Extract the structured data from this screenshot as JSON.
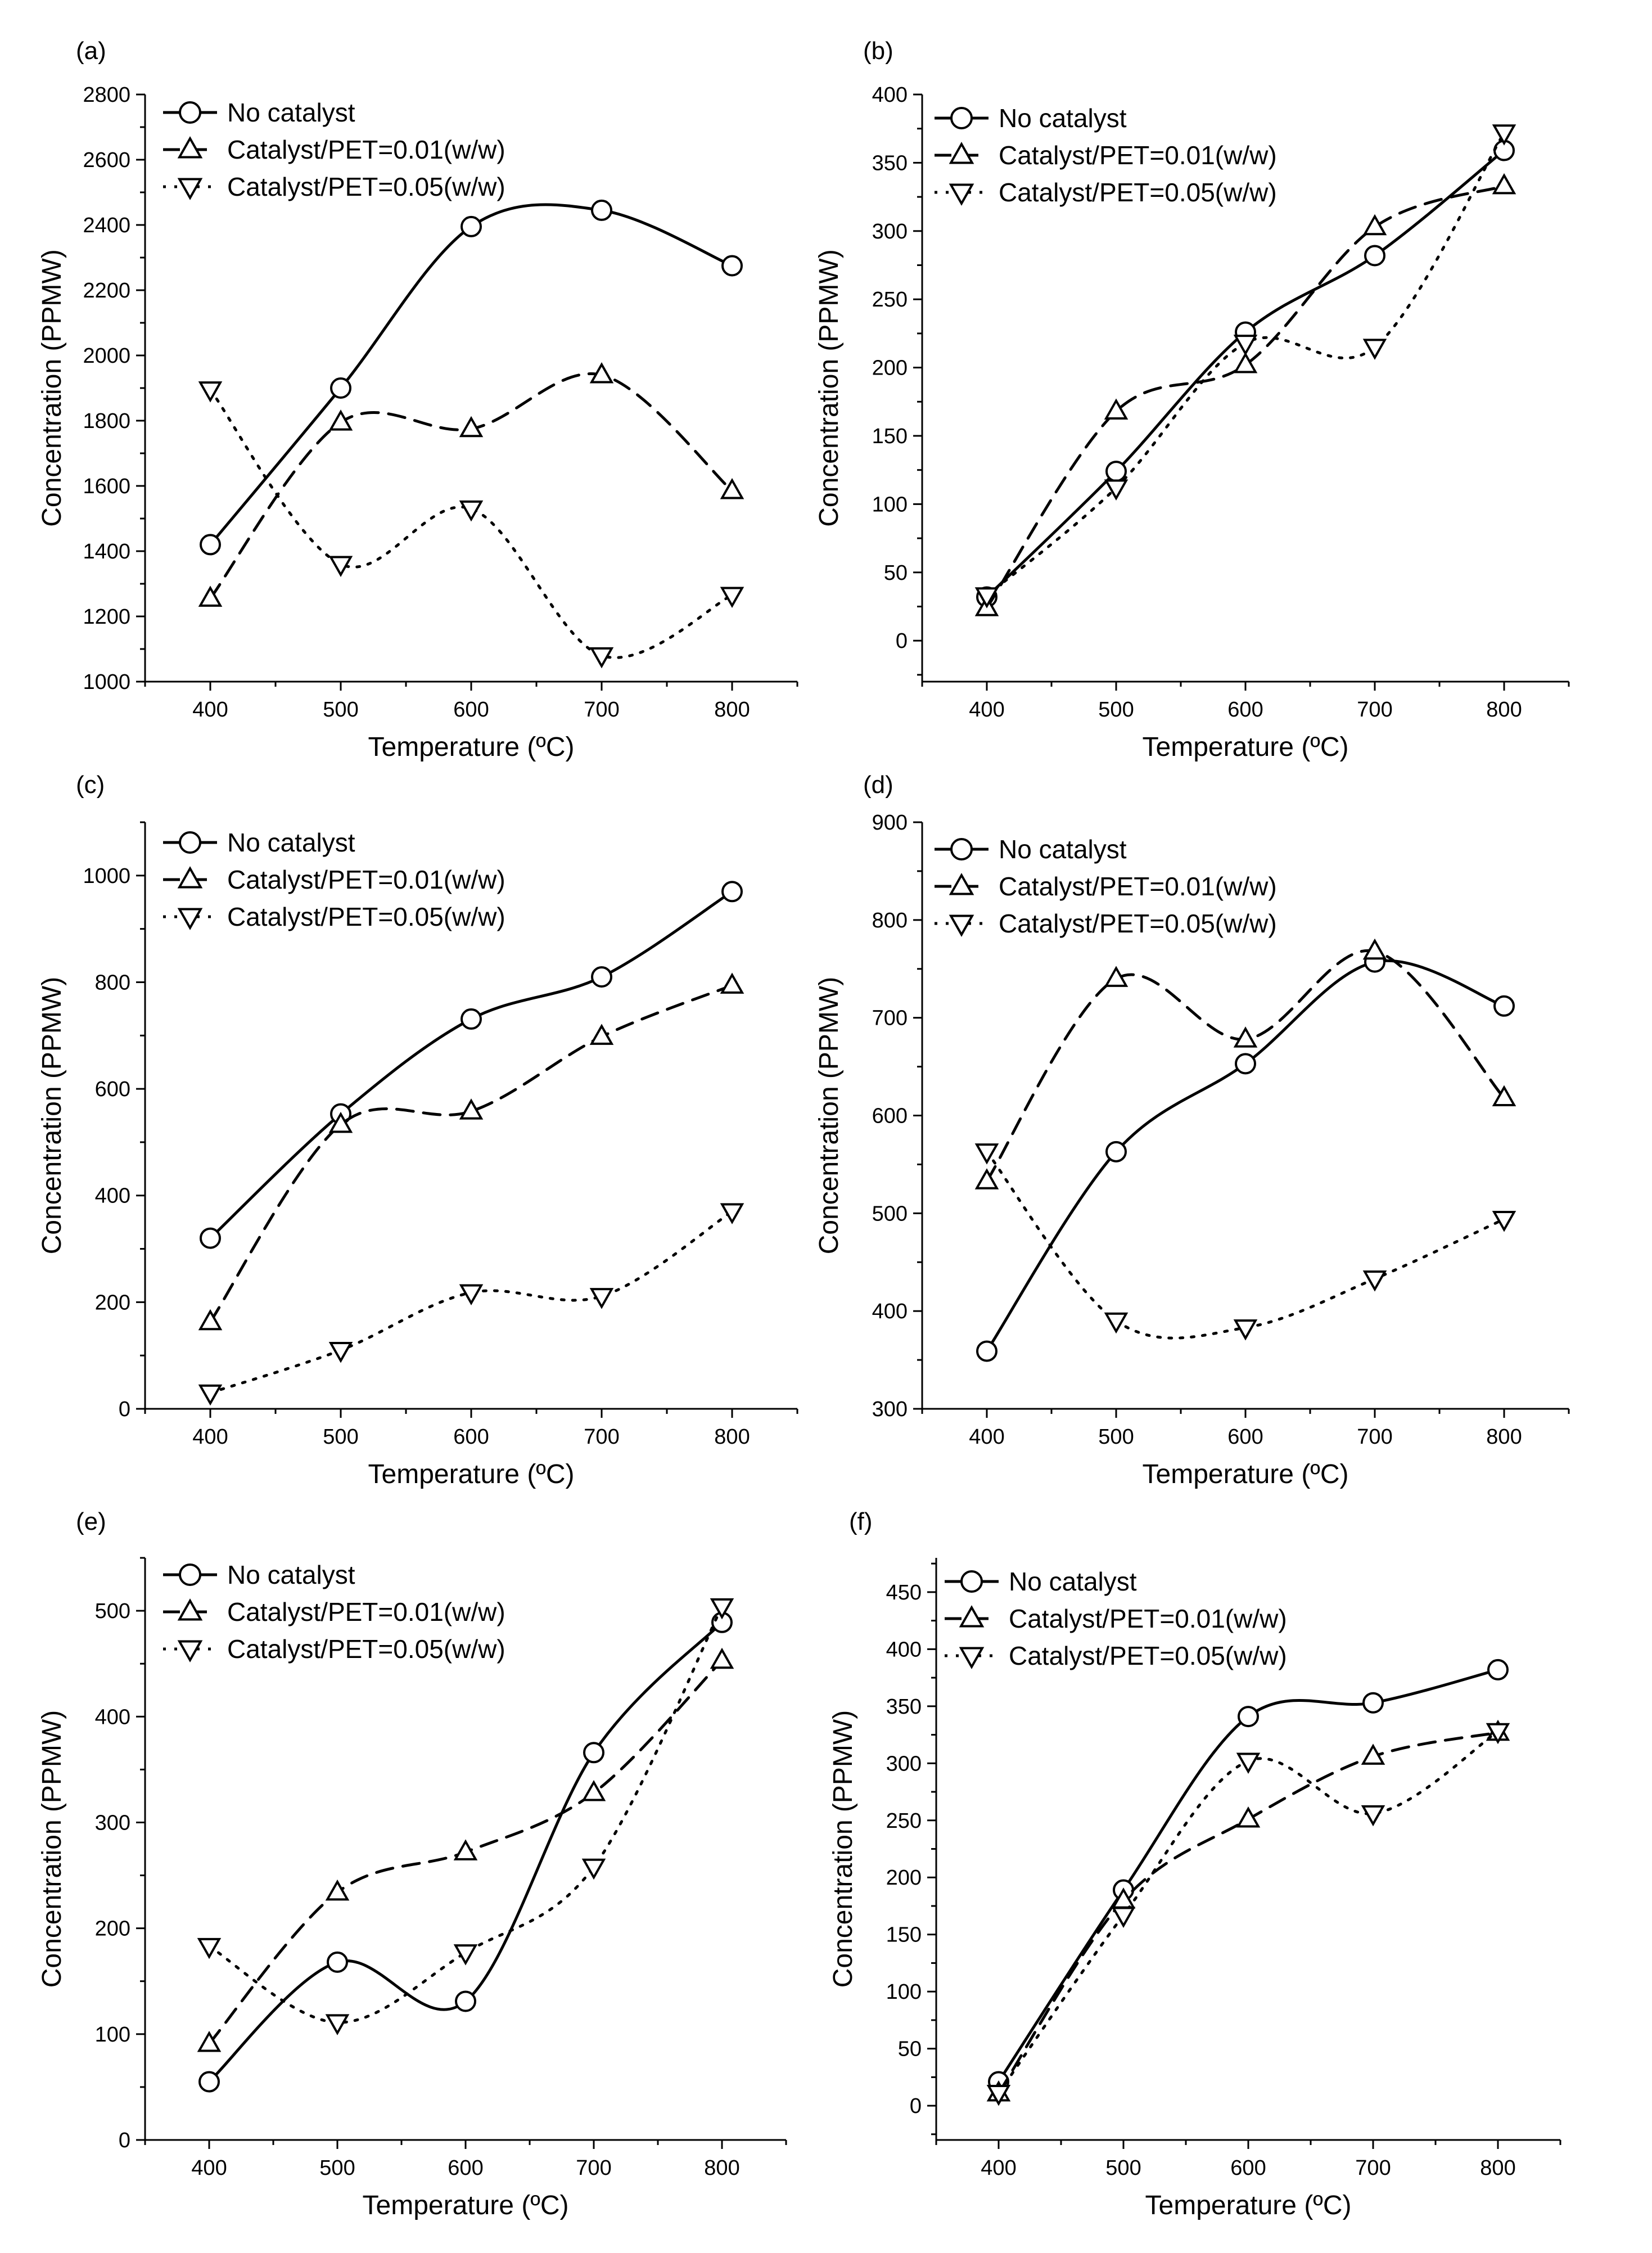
{
  "figure": {
    "background": "#ffffff",
    "line_color": "#000000"
  },
  "chart_data": [
    {
      "panel": "(a)",
      "type": "line",
      "xlabel": "Temperature (ºC)",
      "ylabel": "Concentration (PPMW)",
      "x": [
        400,
        500,
        600,
        700,
        800
      ],
      "xlim": [
        350,
        850
      ],
      "ylim": [
        1000,
        2800
      ],
      "xticks": [
        400,
        500,
        600,
        700,
        800
      ],
      "yticks": [
        1000,
        1200,
        1400,
        1600,
        1800,
        2000,
        2200,
        2400,
        2600,
        2800
      ],
      "series": [
        {
          "name": "No catalyst",
          "marker": "circle",
          "line": "solid",
          "values": [
            1420,
            1900,
            2395,
            2445,
            2275
          ]
        },
        {
          "name": "Catalyst/PET=0.01(w/w)",
          "marker": "triangle-up",
          "line": "dashed",
          "values": [
            1255,
            1795,
            1775,
            1940,
            1585
          ]
        },
        {
          "name": "Catalyst/PET=0.05(w/w)",
          "marker": "triangle-down",
          "line": "dotted",
          "values": [
            1895,
            1360,
            1530,
            1080,
            1265
          ]
        }
      ]
    },
    {
      "panel": "(b)",
      "type": "line",
      "xlabel": "Temperature (ºC)",
      "ylabel": "Concentration (PPMW)",
      "x": [
        400,
        500,
        600,
        700,
        800
      ],
      "xlim": [
        350,
        850
      ],
      "ylim": [
        -30,
        400
      ],
      "xticks": [
        400,
        500,
        600,
        700,
        800
      ],
      "yticks": [
        0,
        50,
        100,
        150,
        200,
        250,
        300,
        350,
        400
      ],
      "series": [
        {
          "name": "No catalyst",
          "marker": "circle",
          "line": "solid",
          "values": [
            32,
            124,
            226,
            282,
            359
          ]
        },
        {
          "name": "Catalyst/PET=0.01(w/w)",
          "marker": "triangle-up",
          "line": "dashed",
          "values": [
            24,
            168,
            202,
            303,
            333
          ]
        },
        {
          "name": "Catalyst/PET=0.05(w/w)",
          "marker": "triangle-down",
          "line": "dotted",
          "values": [
            33,
            112,
            218,
            215,
            372
          ]
        }
      ]
    },
    {
      "panel": "(c)",
      "type": "line",
      "xlabel": "Temperature (ºC)",
      "ylabel": "Concentration (PPMW)",
      "x": [
        400,
        500,
        600,
        700,
        800
      ],
      "xlim": [
        350,
        850
      ],
      "ylim": [
        0,
        1100
      ],
      "xticks": [
        400,
        500,
        600,
        700,
        800
      ],
      "yticks": [
        0,
        200,
        400,
        600,
        800,
        1000
      ],
      "series": [
        {
          "name": "No catalyst",
          "marker": "circle",
          "line": "solid",
          "values": [
            320,
            553,
            731,
            810,
            970
          ]
        },
        {
          "name": "Catalyst/PET=0.01(w/w)",
          "marker": "triangle-up",
          "line": "dashed",
          "values": [
            163,
            533,
            558,
            698,
            794
          ]
        },
        {
          "name": "Catalyst/PET=0.05(w/w)",
          "marker": "triangle-down",
          "line": "dotted",
          "values": [
            30,
            110,
            218,
            211,
            370
          ]
        }
      ]
    },
    {
      "panel": "(d)",
      "type": "line",
      "xlabel": "Temperature (ºC)",
      "ylabel": "Concentration (PPMW)",
      "x": [
        400,
        500,
        600,
        700,
        800
      ],
      "xlim": [
        350,
        850
      ],
      "ylim": [
        300,
        900
      ],
      "xticks": [
        400,
        500,
        600,
        700,
        800
      ],
      "yticks": [
        300,
        400,
        500,
        600,
        700,
        800,
        900
      ],
      "series": [
        {
          "name": "No catalyst",
          "marker": "circle",
          "line": "solid",
          "values": [
            359,
            563,
            653,
            757,
            712
          ]
        },
        {
          "name": "Catalyst/PET=0.01(w/w)",
          "marker": "triangle-up",
          "line": "dashed",
          "values": [
            533,
            740,
            678,
            768,
            618
          ]
        },
        {
          "name": "Catalyst/PET=0.05(w/w)",
          "marker": "triangle-down",
          "line": "dotted",
          "values": [
            563,
            390,
            383,
            433,
            494
          ]
        }
      ]
    },
    {
      "panel": "(e)",
      "type": "line",
      "xlabel": "Temperature (ºC)",
      "ylabel": "Concentration (PPMW)",
      "x": [
        400,
        500,
        600,
        700,
        800
      ],
      "xlim": [
        350,
        850
      ],
      "ylim": [
        0,
        550
      ],
      "xticks": [
        400,
        500,
        600,
        700,
        800
      ],
      "yticks": [
        0,
        100,
        200,
        300,
        400,
        500
      ],
      "series": [
        {
          "name": "No catalyst",
          "marker": "circle",
          "line": "solid",
          "values": [
            55,
            168,
            131,
            366,
            489
          ]
        },
        {
          "name": "Catalyst/PET=0.01(w/w)",
          "marker": "triangle-up",
          "line": "dashed",
          "values": [
            91,
            234,
            272,
            328,
            453
          ]
        },
        {
          "name": "Catalyst/PET=0.05(w/w)",
          "marker": "triangle-down",
          "line": "dotted",
          "values": [
            183,
            111,
            177,
            258,
            504
          ]
        }
      ]
    },
    {
      "panel": "(f)",
      "type": "line",
      "xlabel": "Temperature (ºC)",
      "ylabel": "Concentration (PPMW)",
      "x": [
        400,
        500,
        600,
        700,
        800
      ],
      "xlim": [
        350,
        850
      ],
      "ylim": [
        -30,
        480
      ],
      "xticks": [
        400,
        500,
        600,
        700,
        800
      ],
      "yticks": [
        0,
        50,
        100,
        150,
        200,
        250,
        300,
        350,
        400,
        450
      ],
      "series": [
        {
          "name": "No catalyst",
          "marker": "circle",
          "line": "solid",
          "values": [
            21,
            189,
            341,
            353,
            382
          ]
        },
        {
          "name": "Catalyst/PET=0.01(w/w)",
          "marker": "triangle-up",
          "line": "dashed",
          "values": [
            11,
            180,
            251,
            306,
            327
          ]
        },
        {
          "name": "Catalyst/PET=0.05(w/w)",
          "marker": "triangle-down",
          "line": "dotted",
          "values": [
            11,
            167,
            302,
            256,
            328
          ]
        }
      ]
    }
  ]
}
